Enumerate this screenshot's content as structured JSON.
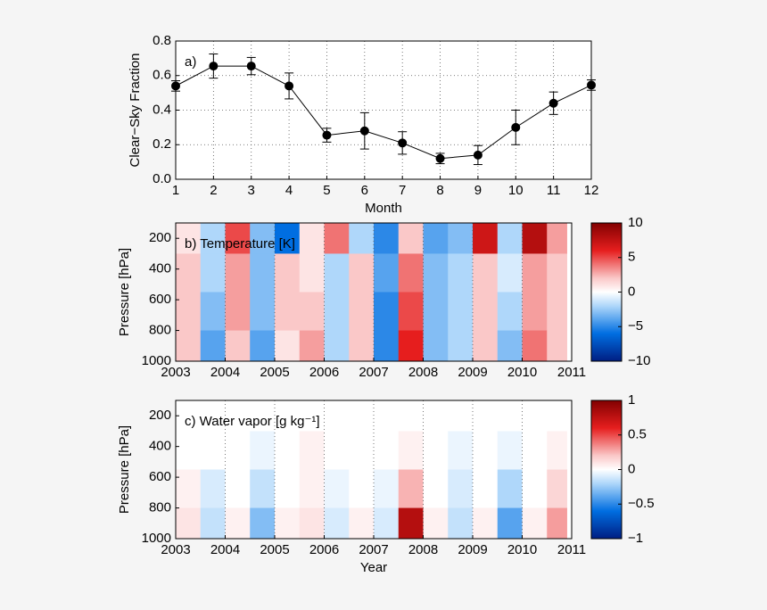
{
  "chart_data": [
    {
      "type": "line",
      "ylabel": "Clear−Sky Fraction",
      "xlabel": "Month",
      "annotation": "a)",
      "x": [
        1,
        2,
        3,
        4,
        5,
        6,
        7,
        8,
        9,
        10,
        11,
        12
      ],
      "values": [
        0.54,
        0.655,
        0.655,
        0.54,
        0.255,
        0.28,
        0.21,
        0.12,
        0.14,
        0.3,
        0.44,
        0.545
      ],
      "errors": [
        0.03,
        0.07,
        0.05,
        0.075,
        0.04,
        0.105,
        0.065,
        0.03,
        0.055,
        0.1,
        0.065,
        0.03
      ],
      "color": "#000000",
      "xlim": [
        1,
        12
      ],
      "xticks": [
        1,
        2,
        3,
        4,
        5,
        6,
        7,
        8,
        9,
        10,
        11,
        12
      ],
      "ylim": [
        0,
        0.8
      ],
      "yticks": [
        {
          "value": 0,
          "label": "0.0"
        },
        0.2,
        0.4,
        0.6,
        0.8
      ],
      "grid": true
    },
    {
      "type": "heatmap",
      "ylabel": "Pressure [hPa]",
      "annotation": "b) Temperature [K]",
      "x_bins": [
        2003,
        2003.5,
        2004,
        2004.5,
        2005,
        2005.5,
        2006,
        2006.5,
        2007,
        2007.5,
        2008,
        2008.5,
        2009,
        2009.5,
        2010,
        2010.5,
        2010.9
      ],
      "y_bins": [
        100,
        300,
        550,
        800,
        1000
      ],
      "values": [
        [
          1,
          -2,
          5,
          -3,
          -6,
          1,
          4,
          -2,
          -5,
          2,
          -4,
          -3,
          7,
          -2,
          8,
          3
        ],
        [
          2,
          -2,
          3,
          -3,
          2,
          1,
          -2,
          2,
          -4,
          4,
          -3,
          -2,
          2,
          -1,
          3,
          2
        ],
        [
          2,
          -3,
          3,
          -3,
          2,
          2,
          -2,
          2,
          -5,
          5,
          -3,
          -2,
          2,
          -2,
          3,
          2
        ],
        [
          2,
          -4,
          2,
          -4,
          1,
          3,
          -2,
          2,
          -5,
          6,
          -3,
          -2,
          2,
          -3,
          4,
          2
        ]
      ],
      "clim": [
        -10,
        10
      ],
      "cticks": [
        {
          "value": -10,
          "label": "−10"
        },
        {
          "value": -5,
          "label": "−5"
        },
        0,
        5,
        10
      ],
      "xlim": [
        2003,
        2011
      ],
      "xticks": [
        2003,
        2004,
        2005,
        2006,
        2007,
        2008,
        2009,
        2010,
        2011
      ],
      "ylim": [
        1000,
        100
      ],
      "yticks": [
        200,
        400,
        600,
        800,
        1000
      ],
      "grid": true
    },
    {
      "type": "heatmap",
      "ylabel": "Pressure [hPa]",
      "xlabel": "Year",
      "annotation": "c) Water vapor [g kg⁻¹]",
      "x_bins": [
        2003,
        2003.5,
        2004,
        2004.5,
        2005,
        2005.5,
        2006,
        2006.5,
        2007,
        2007.5,
        2008,
        2008.5,
        2009,
        2009.5,
        2010,
        2010.5,
        2010.9
      ],
      "y_bins": [
        100,
        300,
        550,
        800,
        1000
      ],
      "values": [
        [
          0,
          0,
          0,
          0,
          0,
          0,
          0,
          0,
          0,
          0,
          0,
          0,
          0,
          0,
          0,
          0
        ],
        [
          0,
          0,
          0,
          -0.05,
          0,
          0.05,
          0,
          0,
          0,
          0.05,
          0,
          -0.05,
          0,
          -0.05,
          0,
          0.05
        ],
        [
          0.05,
          -0.1,
          0,
          -0.15,
          0,
          0.05,
          -0.05,
          0,
          -0.05,
          0.25,
          0,
          -0.1,
          0,
          -0.2,
          0,
          0.15
        ],
        [
          0.1,
          -0.15,
          0.05,
          -0.3,
          0.05,
          0.1,
          -0.1,
          0.05,
          -0.1,
          0.8,
          0.05,
          -0.15,
          0.05,
          -0.4,
          0.05,
          0.3
        ]
      ],
      "clim": [
        -1,
        1
      ],
      "cticks": [
        {
          "value": -1,
          "label": "−1"
        },
        {
          "value": -0.5,
          "label": "−0.5"
        },
        0,
        0.5,
        1
      ],
      "xlim": [
        2003,
        2011
      ],
      "xticks": [
        2003,
        2004,
        2005,
        2006,
        2007,
        2008,
        2009,
        2010,
        2011
      ],
      "ylim": [
        1000,
        100
      ],
      "yticks": [
        200,
        400,
        600,
        800,
        1000
      ],
      "grid": true
    }
  ]
}
